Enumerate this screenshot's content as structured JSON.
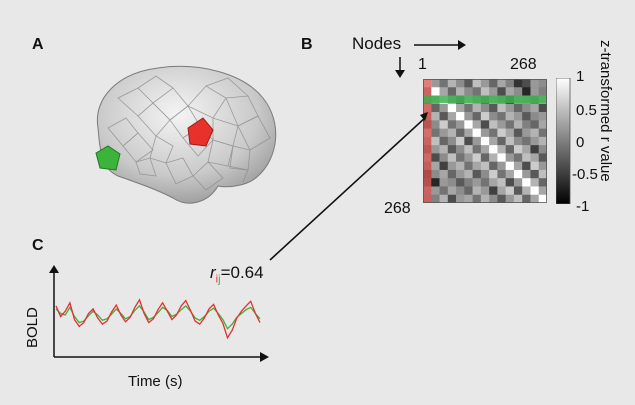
{
  "panels": {
    "a": {
      "label": "A"
    },
    "b": {
      "label": "B"
    },
    "c": {
      "label": "C"
    }
  },
  "matrix": {
    "axis_label": "Nodes",
    "first_node": "1",
    "last_node_top": "268",
    "last_node_left": "268",
    "colorbar_title": "z-transformed r value",
    "colorbar_ticks": [
      "1",
      "0.5",
      "0",
      "-0.5",
      "-1"
    ],
    "cell_values": [
      [
        1.0,
        0.2,
        -0.1,
        0.4,
        0.1,
        -0.3,
        0.5,
        0.2,
        -0.2,
        0.3,
        0.0,
        -0.6,
        -0.4,
        0.2,
        0.1
      ],
      [
        0.2,
        1.0,
        0.3,
        -0.2,
        0.4,
        0.1,
        -0.1,
        0.5,
        0.2,
        -0.4,
        0.3,
        0.1,
        -0.7,
        0.2,
        0.0
      ],
      [
        -0.1,
        0.3,
        1.0,
        0.2,
        -0.3,
        0.6,
        0.2,
        -0.2,
        0.4,
        0.1,
        -0.5,
        0.3,
        0.2,
        -0.1,
        0.4
      ],
      [
        0.4,
        -0.2,
        0.2,
        1.0,
        0.3,
        -0.1,
        0.4,
        0.1,
        -0.3,
        0.5,
        0.2,
        -0.2,
        0.1,
        0.3,
        -0.4
      ],
      [
        0.1,
        0.4,
        -0.3,
        0.3,
        1.0,
        0.2,
        -0.2,
        0.6,
        0.1,
        -0.1,
        0.4,
        0.2,
        -0.3,
        0.1,
        0.2
      ],
      [
        -0.3,
        0.1,
        0.6,
        -0.1,
        0.2,
        1.0,
        0.3,
        -0.4,
        0.5,
        0.2,
        -0.1,
        0.4,
        0.0,
        -0.2,
        0.3
      ],
      [
        0.5,
        -0.1,
        0.2,
        0.4,
        -0.2,
        0.3,
        1.0,
        0.2,
        -0.1,
        0.6,
        0.3,
        -0.3,
        0.2,
        0.4,
        -0.1
      ],
      [
        0.2,
        0.5,
        -0.2,
        0.1,
        0.6,
        -0.4,
        0.2,
        1.0,
        0.3,
        -0.2,
        0.5,
        0.1,
        -0.1,
        0.2,
        0.4
      ],
      [
        -0.2,
        0.2,
        0.4,
        -0.3,
        0.1,
        0.5,
        -0.1,
        0.3,
        1.0,
        0.4,
        -0.2,
        0.6,
        0.3,
        -0.5,
        0.1
      ],
      [
        0.3,
        -0.4,
        0.1,
        0.5,
        -0.1,
        0.2,
        0.6,
        -0.2,
        0.4,
        1.0,
        0.2,
        -0.1,
        0.5,
        0.3,
        -0.3
      ],
      [
        0.0,
        0.3,
        -0.5,
        0.2,
        0.4,
        -0.1,
        0.3,
        0.5,
        -0.2,
        0.2,
        1.0,
        0.3,
        -0.4,
        0.6,
        0.2
      ],
      [
        -0.6,
        0.1,
        0.3,
        -0.2,
        0.2,
        0.4,
        -0.3,
        0.1,
        0.6,
        -0.1,
        0.3,
        1.0,
        0.2,
        -0.3,
        0.5
      ],
      [
        -0.4,
        -0.7,
        0.2,
        0.1,
        -0.3,
        0.0,
        0.2,
        -0.1,
        0.3,
        0.5,
        -0.4,
        0.2,
        1.0,
        0.4,
        -0.2
      ],
      [
        0.2,
        0.2,
        -0.1,
        0.3,
        0.1,
        -0.2,
        0.4,
        0.2,
        -0.5,
        0.3,
        0.6,
        -0.3,
        0.4,
        1.0,
        0.3
      ],
      [
        0.1,
        0.0,
        0.4,
        -0.4,
        0.2,
        0.3,
        -0.1,
        0.4,
        0.1,
        -0.3,
        0.2,
        0.5,
        -0.2,
        0.3,
        1.0
      ]
    ],
    "highlight_row": 2,
    "highlight_col": 0
  },
  "correlation": {
    "r_symbol": "r",
    "subscript_i": "i",
    "subscript_j": "j",
    "value_text": "=0.64"
  },
  "timeseries": {
    "ylabel": "BOLD",
    "xlabel": "Time (s)",
    "red_signal": [
      0.62,
      0.48,
      0.55,
      0.66,
      0.44,
      0.35,
      0.4,
      0.52,
      0.58,
      0.46,
      0.38,
      0.42,
      0.54,
      0.63,
      0.5,
      0.41,
      0.47,
      0.6,
      0.7,
      0.52,
      0.4,
      0.45,
      0.57,
      0.66,
      0.55,
      0.44,
      0.5,
      0.62,
      0.69,
      0.56,
      0.42,
      0.38,
      0.46,
      0.58,
      0.64,
      0.5,
      0.39,
      0.2,
      0.3,
      0.46,
      0.55,
      0.62,
      0.68,
      0.52,
      0.4
    ],
    "green_signal": [
      0.58,
      0.52,
      0.5,
      0.6,
      0.48,
      0.4,
      0.42,
      0.49,
      0.55,
      0.5,
      0.43,
      0.45,
      0.51,
      0.58,
      0.52,
      0.45,
      0.48,
      0.56,
      0.62,
      0.54,
      0.44,
      0.47,
      0.53,
      0.6,
      0.56,
      0.48,
      0.51,
      0.57,
      0.62,
      0.55,
      0.46,
      0.43,
      0.48,
      0.55,
      0.59,
      0.52,
      0.44,
      0.32,
      0.38,
      0.47,
      0.52,
      0.57,
      0.6,
      0.52,
      0.45
    ]
  },
  "colors": {
    "region_red": "#e8312a",
    "region_green": "#3cb43c",
    "signal_red": "#e53030",
    "signal_green": "#3fae3f",
    "highlight_row_band": "#3fb24f",
    "highlight_col_band": "#d9534f"
  }
}
